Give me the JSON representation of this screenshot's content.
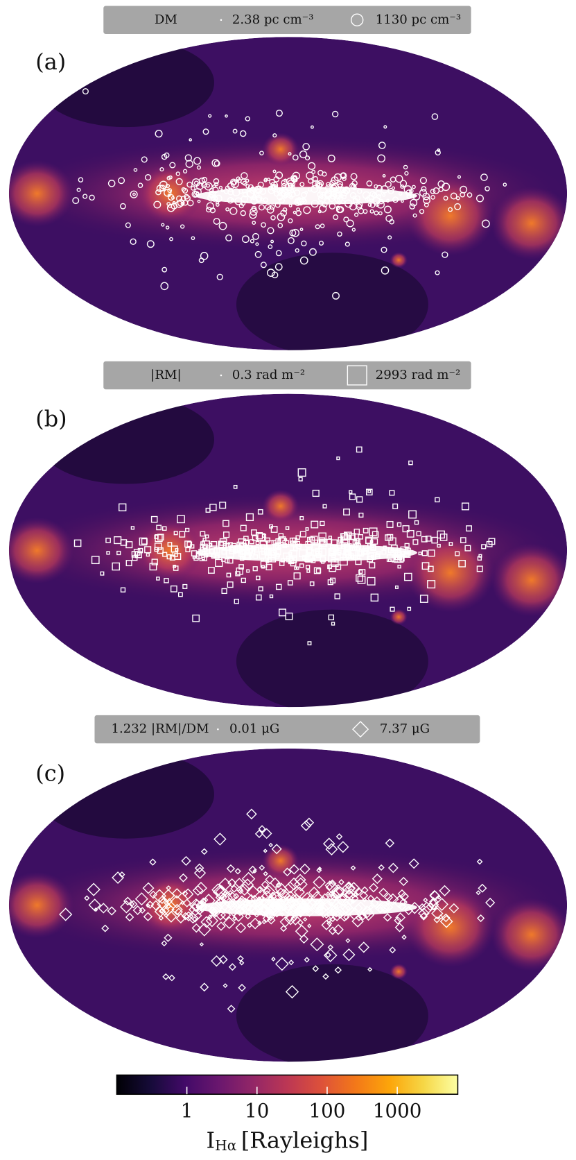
{
  "panels": [
    {
      "label": "(a)",
      "legend": [
        "DM",
        "2.38 pc cm⁻³",
        "1130 pc cm⁻³"
      ],
      "marker": "circle"
    },
    {
      "label": "(b)",
      "legend": [
        "|RM|",
        "0.3 rad m⁻²",
        "2993 rad m⁻²"
      ],
      "marker": "square"
    },
    {
      "label": "(c)",
      "legend": [
        "1.232 |RM|/DM",
        "0.01 μG",
        "7.37 μG"
      ],
      "marker": "diamond"
    }
  ],
  "colorbar": {
    "log": true,
    "clim": [
      0.1,
      7300
    ],
    "ticks": [
      1,
      10,
      100,
      1000
    ],
    "label": {
      "main": "I",
      "sub": "Hα",
      "unit": "[Rayleighs]"
    }
  }
}
